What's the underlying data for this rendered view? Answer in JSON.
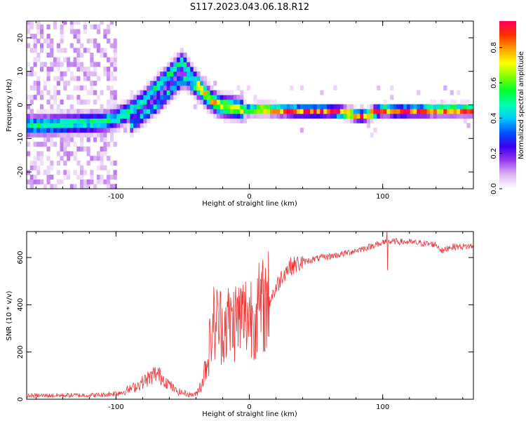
{
  "figure": {
    "title": "S117.2023.043.06.18.R12"
  },
  "chart_data": [
    {
      "type": "heatmap",
      "xlabel": "Height of straight line (km)",
      "ylabel": "Frequency (Hz)",
      "xlim": [
        -167,
        168
      ],
      "ylim": [
        -25,
        25
      ],
      "x_ticks": [
        -100,
        0,
        100
      ],
      "y_ticks": [
        -20,
        -10,
        0,
        10,
        20
      ],
      "colorbar": {
        "label": "Normalized spectral amplitude",
        "range": [
          0,
          0.95
        ],
        "ticks": [
          0.0,
          0.2,
          0.4,
          0.6,
          0.8
        ],
        "colormap": [
          "#ffffff",
          "#dcb8f2",
          "#9a3cf0",
          "#3c00f0",
          "#0050ff",
          "#00c8ff",
          "#00ffb0",
          "#00ff30",
          "#80ff00",
          "#ffff00",
          "#ffa000",
          "#ff3000",
          "#ff0060"
        ]
      },
      "ridge_upper": {
        "x": [
          -167,
          -150,
          -130,
          -110,
          -100,
          -90,
          -80,
          -70,
          -60,
          -55,
          -50,
          -45,
          -40,
          -35,
          -30,
          -25,
          -20,
          -15,
          -10,
          -5,
          0,
          10,
          20,
          40,
          60,
          70,
          75,
          80,
          85,
          90,
          95,
          100,
          110,
          120,
          140,
          168
        ],
        "y": [
          -6,
          -6,
          -5.5,
          -5,
          -4,
          -2,
          1,
          5,
          9,
          11,
          13,
          9.5,
          7,
          4,
          2,
          0.5,
          -0.5,
          -0.5,
          -1,
          -1.2,
          -1.5,
          -1.2,
          -1.5,
          -1.8,
          -1.8,
          -2.2,
          -2.5,
          -3,
          -3.2,
          -2.8,
          -2,
          -1.5,
          -1.8,
          -1.8,
          -1.5,
          -1.5
        ]
      },
      "ridge_lower": {
        "x": [
          -90,
          -80,
          -70,
          -60,
          -55,
          -50,
          -45,
          -40,
          -35,
          -30
        ],
        "y": [
          -6,
          -3,
          0,
          4,
          6,
          8,
          7,
          5,
          3,
          1
        ]
      },
      "noise_region_x": [
        -167,
        -100
      ]
    },
    {
      "type": "line",
      "xlabel": "Height of straight line (km)",
      "ylabel": "SNR (10 * v/v)",
      "xlim": [
        -167,
        168
      ],
      "ylim": [
        0,
        710
      ],
      "x_ticks": [
        -100,
        0,
        100
      ],
      "y_ticks": [
        0,
        200,
        400,
        600
      ],
      "line_color": "#ee3333",
      "envelope": {
        "x": [
          -167,
          -110,
          -95,
          -85,
          -75,
          -70,
          -65,
          -55,
          -45,
          -40,
          -35,
          -30,
          -27,
          -24,
          -20,
          -17,
          -14,
          -10,
          -5,
          0,
          5,
          10,
          15,
          20,
          25,
          30,
          40,
          50,
          60,
          70,
          80,
          90,
          95,
          100,
          110,
          120,
          130,
          140,
          145,
          150,
          168
        ],
        "y": [
          15,
          18,
          30,
          55,
          90,
          110,
          90,
          35,
          20,
          20,
          80,
          220,
          320,
          330,
          310,
          330,
          320,
          340,
          350,
          360,
          370,
          390,
          420,
          470,
          530,
          560,
          580,
          595,
          605,
          615,
          630,
          645,
          655,
          665,
          668,
          665,
          660,
          655,
          625,
          645,
          648
        ]
      }
    }
  ]
}
